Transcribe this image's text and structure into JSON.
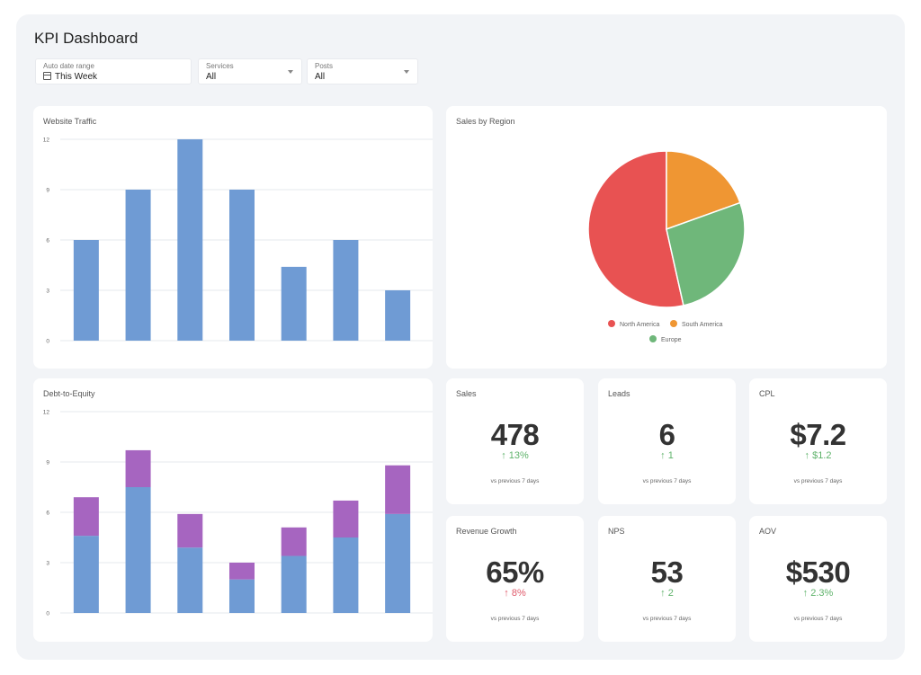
{
  "header": {
    "title": "KPI Dashboard"
  },
  "filters": [
    {
      "label": "Auto date range",
      "value": "This Week",
      "icon": "calendar-icon"
    },
    {
      "label": "Services",
      "value": "All",
      "icon": "chevron-down-icon"
    },
    {
      "label": "Posts",
      "value": "All",
      "icon": "chevron-down-icon"
    }
  ],
  "colors": {
    "blue": "#6f9bd4",
    "purple": "#a665c0",
    "red": "#e85252",
    "orange": "#ef9633",
    "green": "#6fb77a",
    "up": "#5fb36b",
    "down": "#e05a6b"
  },
  "traffic": {
    "title": "Website Traffic",
    "chart_data": {
      "type": "bar",
      "categories": [
        "",
        "",
        "",
        "",
        "",
        "",
        ""
      ],
      "values": [
        6,
        9,
        12,
        9,
        4.4,
        6,
        3
      ],
      "ylim": [
        0,
        12
      ],
      "yticks": [
        "0",
        "3",
        "6",
        "9",
        "12"
      ],
      "grid": true
    }
  },
  "region": {
    "title": "Sales by Region",
    "chart_data": {
      "type": "pie",
      "labels": [
        "North America",
        "South America",
        "Europe"
      ],
      "values": [
        53.5,
        19.5,
        27
      ],
      "colors": [
        "#e85252",
        "#ef9633",
        "#6fb77a"
      ],
      "legend": "bottom"
    }
  },
  "debt": {
    "title": "Debt-to-Equity",
    "chart_data": {
      "type": "bar",
      "stacked": true,
      "categories": [
        "",
        "",
        "",
        "",
        "",
        "",
        ""
      ],
      "series": [
        {
          "values": [
            4.6,
            7.5,
            3.9,
            2.0,
            3.4,
            4.5,
            5.9
          ]
        },
        {
          "values": [
            2.3,
            2.2,
            2.0,
            1.0,
            1.7,
            2.2,
            2.9
          ]
        }
      ],
      "ylim": [
        0,
        12
      ],
      "yticks": [
        "0",
        "3",
        "6",
        "9",
        "12"
      ],
      "grid": true
    }
  },
  "kpis": [
    {
      "title": "Sales",
      "value": "478",
      "delta": "↑ 13%",
      "trend": "up",
      "note": "vs previous 7 days"
    },
    {
      "title": "Leads",
      "value": "6",
      "delta": "↑ 1",
      "trend": "up",
      "note": "vs previous 7 days"
    },
    {
      "title": "CPL",
      "value": "$7.2",
      "delta": "↑ $1.2",
      "trend": "up",
      "note": "vs previous 7 days"
    },
    {
      "title": "Revenue Growth",
      "value": "65%",
      "delta": "↑ 8%",
      "trend": "down",
      "note": "vs previous 7 days"
    },
    {
      "title": "NPS",
      "value": "53",
      "delta": "↑ 2",
      "trend": "up",
      "note": "vs previous 7 days"
    },
    {
      "title": "AOV",
      "value": "$530",
      "delta": "↑ 2.3%",
      "trend": "up",
      "note": "vs previous 7 days"
    }
  ]
}
